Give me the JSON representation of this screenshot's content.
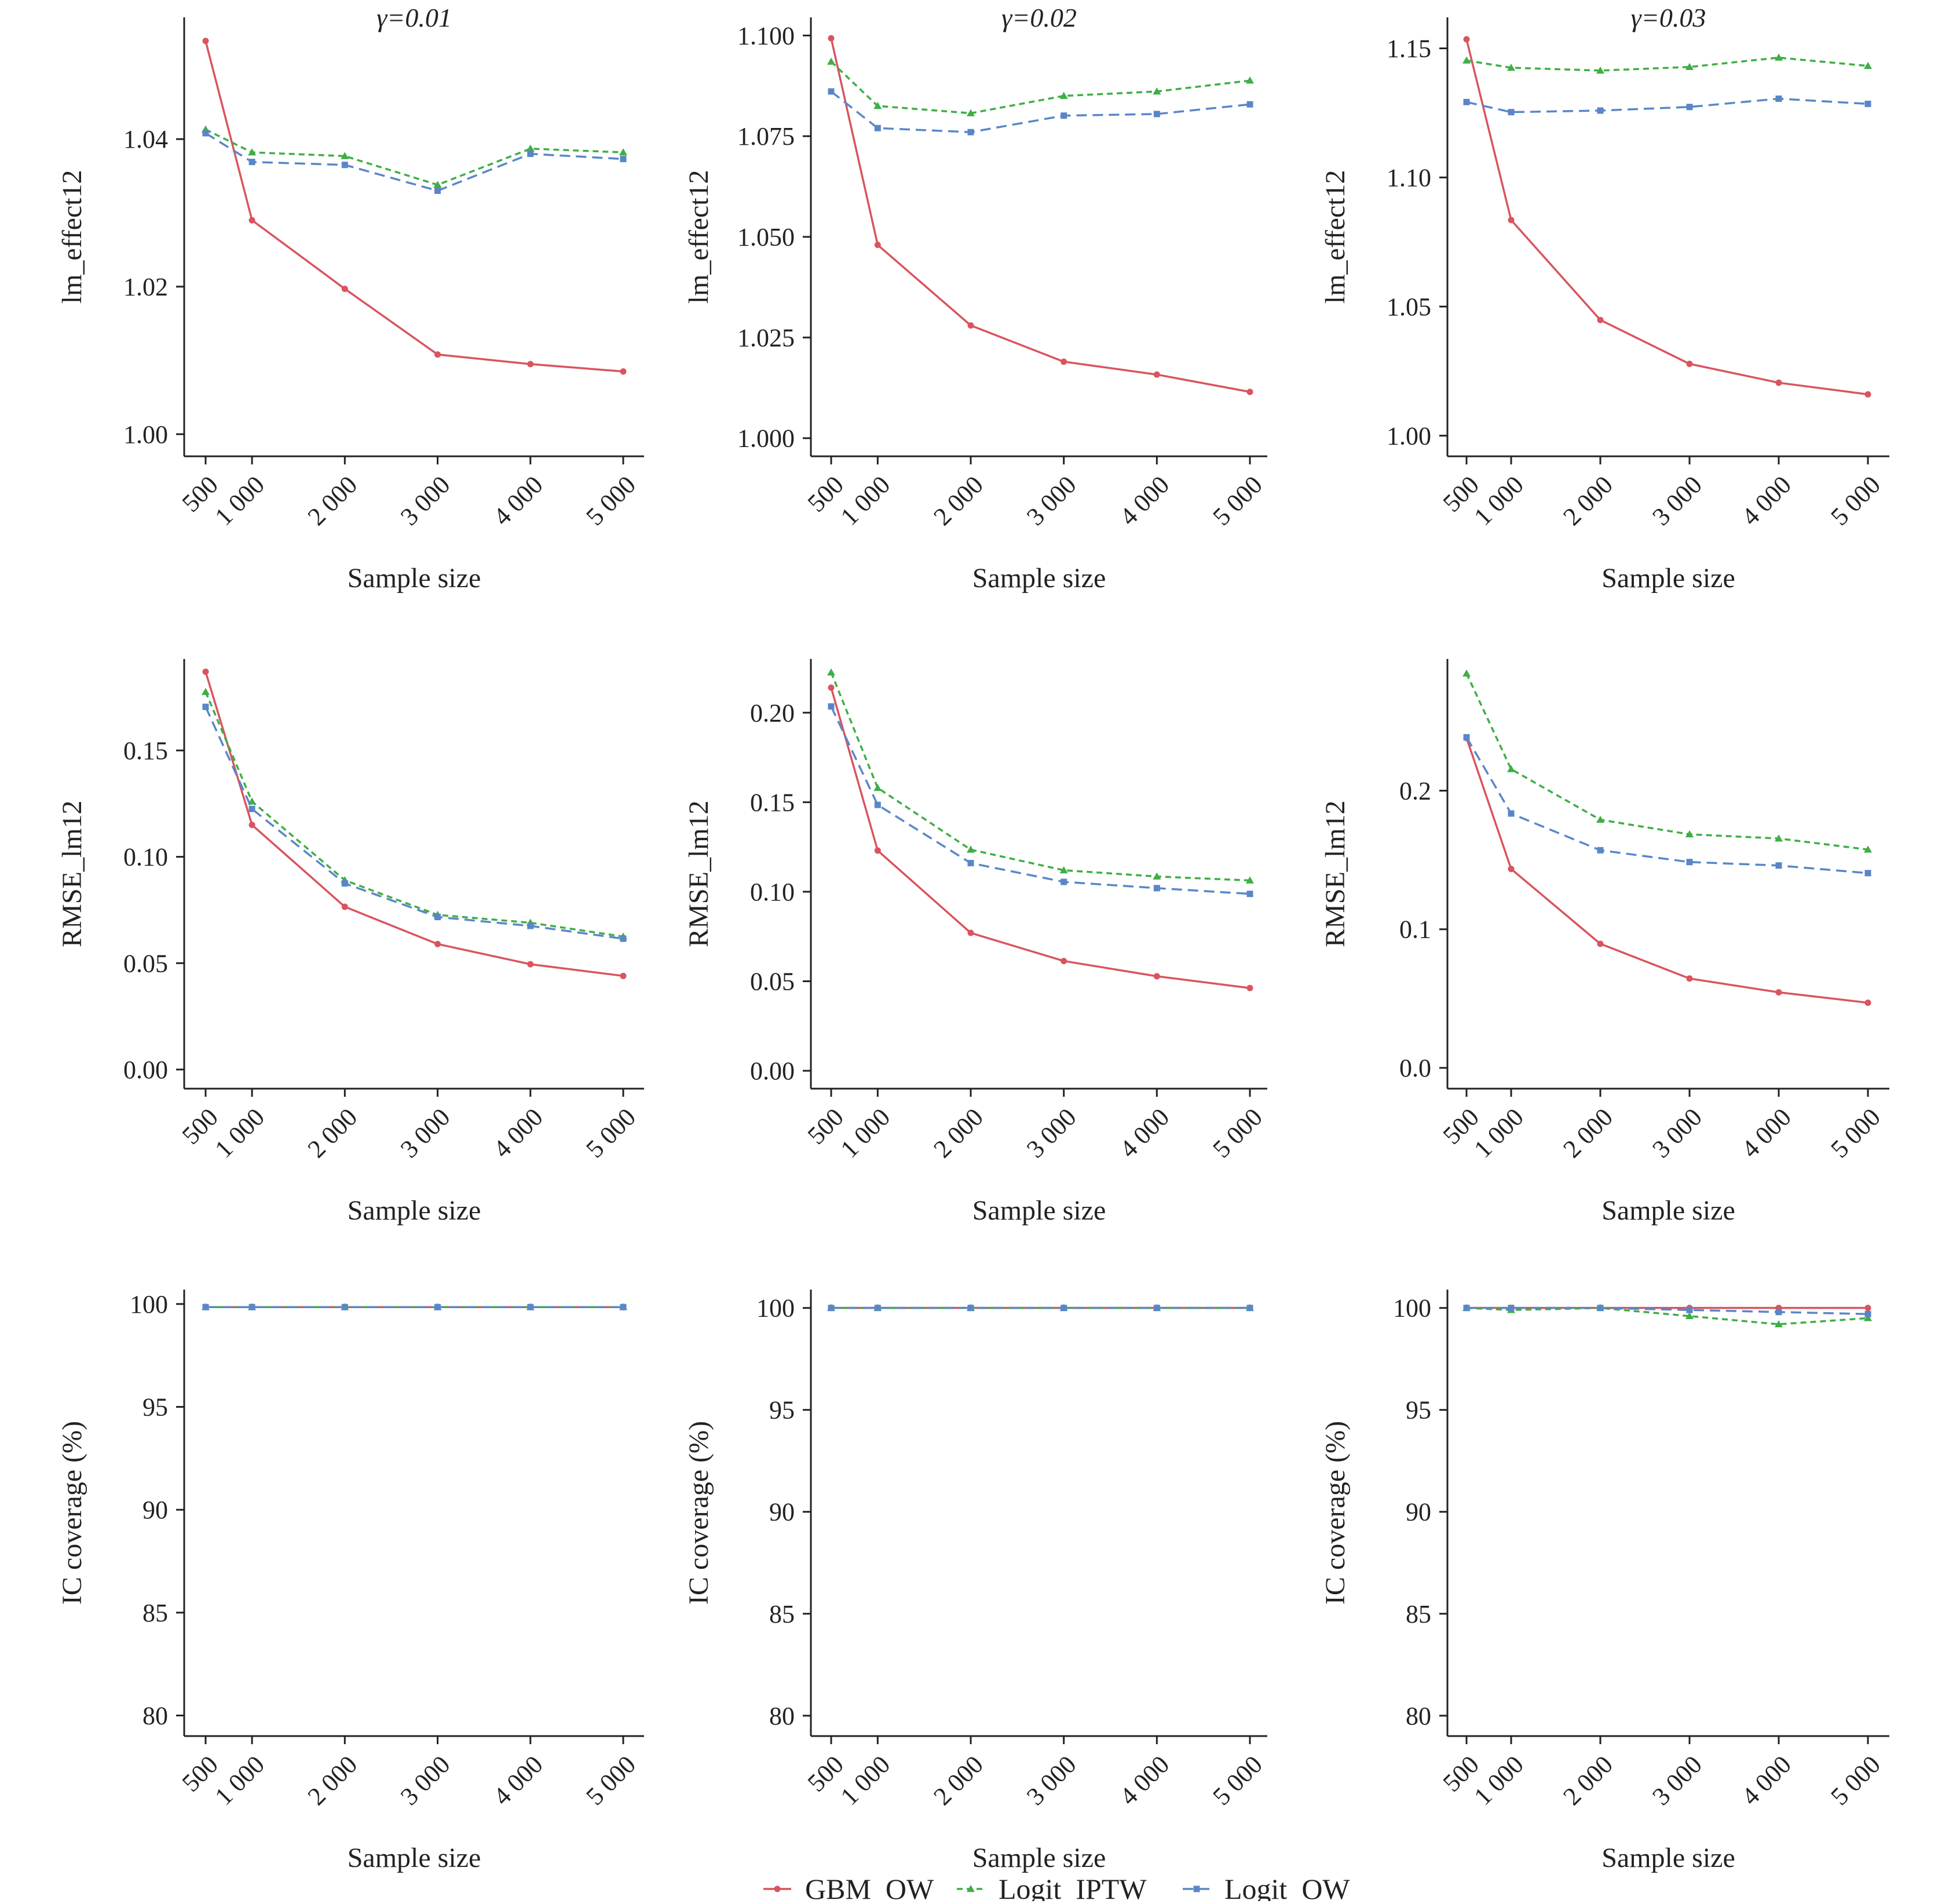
{
  "x_categories": [
    "500",
    "1 000",
    "2 000",
    "3 000",
    "4 000",
    "5 000"
  ],
  "x_values": [
    500,
    1000,
    2000,
    3000,
    4000,
    5000
  ],
  "legend": [
    {
      "name": "GBM_OW",
      "color": "#d9545f",
      "dash": "solid",
      "marker": "dot"
    },
    {
      "name": "Logit_IPTW",
      "color": "#3fae45",
      "dash": "dashed",
      "marker": "triangle"
    },
    {
      "name": "Logit_OW",
      "color": "#5a86c8",
      "dash": "longdash",
      "marker": "square"
    }
  ],
  "chart_data": [
    {
      "type": "line",
      "row": 0,
      "col": 0,
      "title": "γ=0.01",
      "xlabel": "Sample size",
      "ylabel": "lm_effect12",
      "ylim": [
        0.997,
        1.0565
      ],
      "yticks": [
        1.0,
        1.02,
        1.04
      ],
      "ytick_labels": [
        "1.00",
        "1.02",
        "1.04"
      ],
      "series": [
        {
          "name": "GBM_OW",
          "values": [
            1.0533,
            1.029,
            1.0197,
            1.0108,
            1.0095,
            1.0085
          ]
        },
        {
          "name": "Logit_IPTW",
          "values": [
            1.0413,
            1.0382,
            1.0377,
            1.0338,
            1.0387,
            1.0382
          ]
        },
        {
          "name": "Logit_OW",
          "values": [
            1.0408,
            1.0369,
            1.0365,
            1.033,
            1.038,
            1.0373
          ]
        }
      ]
    },
    {
      "type": "line",
      "row": 0,
      "col": 1,
      "title": "γ=0.02",
      "xlabel": "Sample size",
      "ylabel": "lm_effect12",
      "ylim": [
        0.9955,
        1.1045
      ],
      "yticks": [
        1.0,
        1.025,
        1.05,
        1.075,
        1.1
      ],
      "ytick_labels": [
        "1.000",
        "1.025",
        "1.050",
        "1.075",
        "1.100"
      ],
      "series": [
        {
          "name": "GBM_OW",
          "values": [
            1.0993,
            1.048,
            1.028,
            1.019,
            1.0158,
            1.0115
          ]
        },
        {
          "name": "Logit_IPTW",
          "values": [
            1.0935,
            1.0825,
            1.0807,
            1.085,
            1.0861,
            1.0888
          ]
        },
        {
          "name": "Logit_OW",
          "values": [
            1.0861,
            1.077,
            1.076,
            1.0801,
            1.0805,
            1.0829
          ]
        }
      ]
    },
    {
      "type": "line",
      "row": 0,
      "col": 2,
      "title": "γ=0.03",
      "xlabel": "Sample size",
      "ylabel": "lm_effect12",
      "ylim": [
        0.992,
        1.162
      ],
      "yticks": [
        1.0,
        1.05,
        1.1,
        1.15
      ],
      "ytick_labels": [
        "1.00",
        "1.05",
        "1.10",
        "1.15"
      ],
      "series": [
        {
          "name": "GBM_OW",
          "values": [
            1.1535,
            1.0835,
            1.0448,
            1.0278,
            1.0205,
            1.016
          ]
        },
        {
          "name": "Logit_IPTW",
          "values": [
            1.1453,
            1.1425,
            1.1414,
            1.1428,
            1.1464,
            1.1432
          ]
        },
        {
          "name": "Logit_OW",
          "values": [
            1.1292,
            1.1253,
            1.1259,
            1.1273,
            1.1305,
            1.1285
          ]
        }
      ]
    },
    {
      "type": "line",
      "row": 1,
      "col": 0,
      "title": "",
      "xlabel": "Sample size",
      "ylabel": "RMSE_lm12",
      "ylim": [
        -0.009,
        0.193
      ],
      "yticks": [
        0.0,
        0.05,
        0.1,
        0.15
      ],
      "ytick_labels": [
        "0.00",
        "0.05",
        "0.10",
        "0.15"
      ],
      "series": [
        {
          "name": "GBM_OW",
          "values": [
            0.187,
            0.115,
            0.0765,
            0.059,
            0.0495,
            0.044
          ]
        },
        {
          "name": "Logit_IPTW",
          "values": [
            0.1775,
            0.126,
            0.089,
            0.0727,
            0.069,
            0.0625
          ]
        },
        {
          "name": "Logit_OW",
          "values": [
            0.1705,
            0.1225,
            0.0875,
            0.0717,
            0.0675,
            0.0615
          ]
        }
      ]
    },
    {
      "type": "line",
      "row": 1,
      "col": 1,
      "title": "",
      "xlabel": "Sample size",
      "ylabel": "RMSE_lm12",
      "ylim": [
        -0.01,
        0.23
      ],
      "yticks": [
        0.0,
        0.05,
        0.1,
        0.15,
        0.2
      ],
      "ytick_labels": [
        "0.00",
        "0.05",
        "0.10",
        "0.15",
        "0.20"
      ],
      "series": [
        {
          "name": "GBM_OW",
          "values": [
            0.214,
            0.123,
            0.077,
            0.0613,
            0.0528,
            0.0462
          ]
        },
        {
          "name": "Logit_IPTW",
          "values": [
            0.2225,
            0.158,
            0.1235,
            0.112,
            0.1085,
            0.1063
          ]
        },
        {
          "name": "Logit_OW",
          "values": [
            0.2035,
            0.1485,
            0.116,
            0.1055,
            0.102,
            0.0988
          ]
        }
      ]
    },
    {
      "type": "line",
      "row": 1,
      "col": 2,
      "title": "",
      "xlabel": "Sample size",
      "ylabel": "RMSE_lm12",
      "ylim": [
        -0.015,
        0.295
      ],
      "yticks": [
        0.0,
        0.1,
        0.2
      ],
      "ytick_labels": [
        "0.0",
        "0.1",
        "0.2"
      ],
      "series": [
        {
          "name": "GBM_OW",
          "values": [
            0.238,
            0.1435,
            0.0895,
            0.0645,
            0.0545,
            0.047
          ]
        },
        {
          "name": "Logit_IPTW",
          "values": [
            0.2845,
            0.2155,
            0.179,
            0.1685,
            0.1655,
            0.1575
          ]
        },
        {
          "name": "Logit_OW",
          "values": [
            0.2385,
            0.1835,
            0.157,
            0.1485,
            0.146,
            0.1405
          ]
        }
      ]
    },
    {
      "type": "line",
      "row": 2,
      "col": 0,
      "title": "",
      "xlabel": "Sample size",
      "ylabel": "IC coverage (%)",
      "ylim": [
        79.0,
        100.7
      ],
      "yticks": [
        80,
        85,
        90,
        95,
        100
      ],
      "ytick_labels": [
        "80",
        "85",
        "90",
        "95",
        "100"
      ],
      "series": [
        {
          "name": "GBM_OW",
          "values": [
            99.85,
            99.85,
            99.85,
            99.85,
            99.85,
            99.85
          ]
        },
        {
          "name": "Logit_IPTW",
          "values": [
            99.85,
            99.85,
            99.85,
            99.85,
            99.85,
            99.85
          ]
        },
        {
          "name": "Logit_OW",
          "values": [
            99.85,
            99.85,
            99.85,
            99.85,
            99.85,
            99.85
          ]
        }
      ]
    },
    {
      "type": "line",
      "row": 2,
      "col": 1,
      "title": "",
      "xlabel": "Sample size",
      "ylabel": "IC coverage (%)",
      "ylim": [
        79.0,
        100.9
      ],
      "yticks": [
        80,
        85,
        90,
        95,
        100
      ],
      "ytick_labels": [
        "80",
        "85",
        "90",
        "95",
        "100"
      ],
      "series": [
        {
          "name": "GBM_OW",
          "values": [
            100,
            100,
            100,
            100,
            100,
            100
          ]
        },
        {
          "name": "Logit_IPTW",
          "values": [
            100,
            100,
            100,
            100,
            100,
            100
          ]
        },
        {
          "name": "Logit_OW",
          "values": [
            100,
            100,
            100,
            100,
            100,
            100
          ]
        }
      ]
    },
    {
      "type": "line",
      "row": 2,
      "col": 2,
      "title": "",
      "xlabel": "Sample size",
      "ylabel": "IC coverage (%)",
      "ylim": [
        79.0,
        100.9
      ],
      "yticks": [
        80,
        85,
        90,
        95,
        100
      ],
      "ytick_labels": [
        "80",
        "85",
        "90",
        "95",
        "100"
      ],
      "series": [
        {
          "name": "GBM_OW",
          "values": [
            100,
            100,
            100,
            100,
            100,
            100
          ]
        },
        {
          "name": "Logit_IPTW",
          "values": [
            100,
            99.9,
            100,
            99.6,
            99.2,
            99.5
          ]
        },
        {
          "name": "Logit_OW",
          "values": [
            100,
            100,
            100,
            99.9,
            99.8,
            99.7
          ]
        }
      ]
    }
  ]
}
